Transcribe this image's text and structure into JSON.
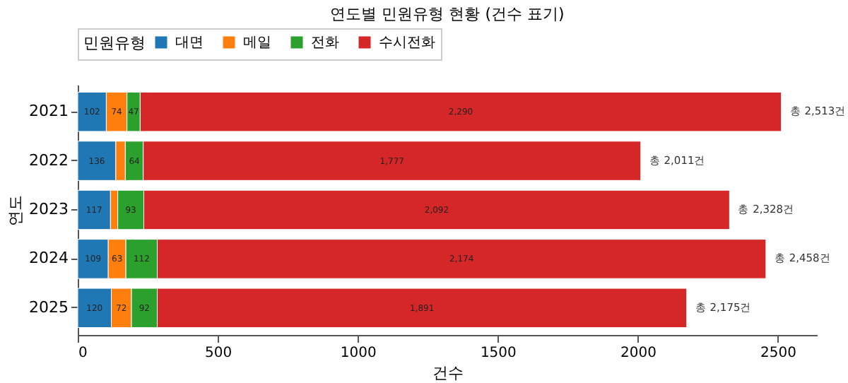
{
  "chart_data": {
    "type": "bar",
    "orientation": "horizontal",
    "stacked": true,
    "title": "연도별 민원유형 현황 (건수 표기)",
    "xlabel": "건수",
    "ylabel": "연도",
    "legend_title": "민원유형",
    "legend": "top",
    "categories": [
      "2021",
      "2022",
      "2023",
      "2024",
      "2025"
    ],
    "series": [
      {
        "name": "대면",
        "color": "#1f77b4",
        "values": [
          102,
          136,
          117,
          109,
          120
        ],
        "value_labels": [
          "102",
          "136",
          "117",
          "109",
          "120"
        ]
      },
      {
        "name": "메일",
        "color": "#ff7f0e",
        "values": [
          74,
          34,
          26,
          63,
          72
        ],
        "value_labels": [
          "74",
          null,
          null,
          "63",
          "72"
        ]
      },
      {
        "name": "전화",
        "color": "#2ca02c",
        "values": [
          47,
          64,
          93,
          112,
          92
        ],
        "value_labels": [
          "47",
          "64",
          "93",
          "112",
          "92"
        ]
      },
      {
        "name": "수시전화",
        "color": "#d62728",
        "values": [
          2290,
          1777,
          2092,
          2174,
          1891
        ],
        "value_labels": [
          "2,290",
          "1,777",
          "2,092",
          "2,174",
          "1,891"
        ]
      }
    ],
    "totals": [
      "총 2,513건",
      "총 2,011건",
      "총 2,328건",
      "총 2,458건",
      "총 2,175건"
    ],
    "xlim": [
      0,
      2640
    ],
    "xticks": [
      0,
      500,
      1000,
      1500,
      2000,
      2500
    ]
  }
}
